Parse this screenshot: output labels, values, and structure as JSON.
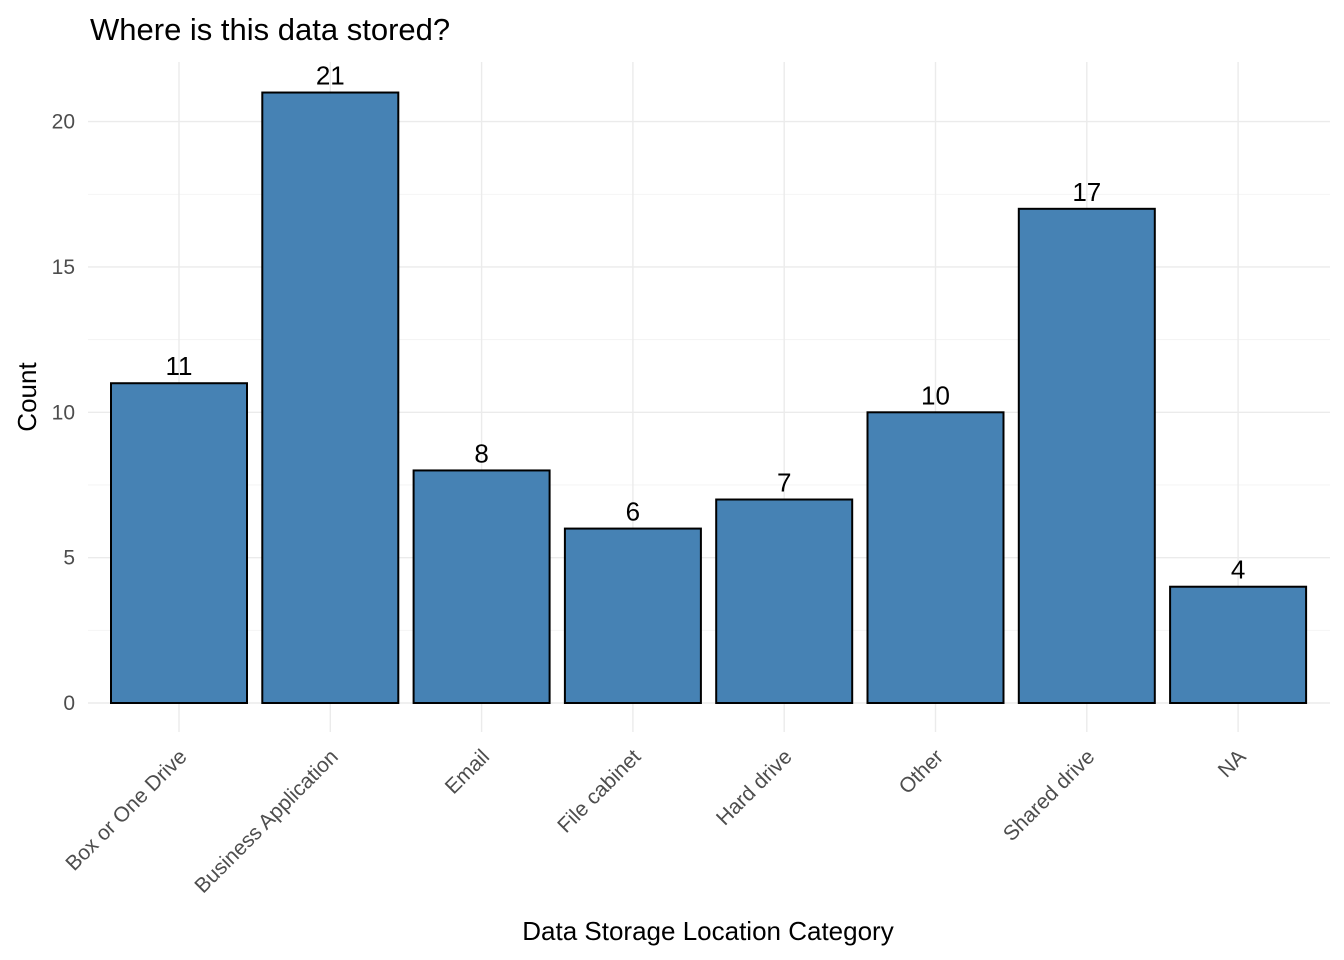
{
  "chart_data": {
    "type": "bar",
    "title": "Where is this data stored?",
    "xlabel": "Data Storage Location Category",
    "ylabel": "Count",
    "categories": [
      "Box or One Drive",
      "Business Application",
      "Email",
      "File cabinet",
      "Hard drive",
      "Other",
      "Shared drive",
      "NA"
    ],
    "values": [
      11,
      21,
      8,
      6,
      7,
      10,
      17,
      4
    ],
    "data_labels": [
      "11",
      "21",
      "8",
      "6",
      "7",
      "10",
      "17",
      "4"
    ],
    "y_ticks": [
      0,
      5,
      10,
      15,
      20
    ],
    "y_tick_labels": [
      "0",
      "5",
      "10",
      "15",
      "20"
    ],
    "ylim": [
      0,
      22
    ],
    "grid": true,
    "legend": "none",
    "bar_fill": "#4682b4",
    "bar_outline": "#000000"
  }
}
